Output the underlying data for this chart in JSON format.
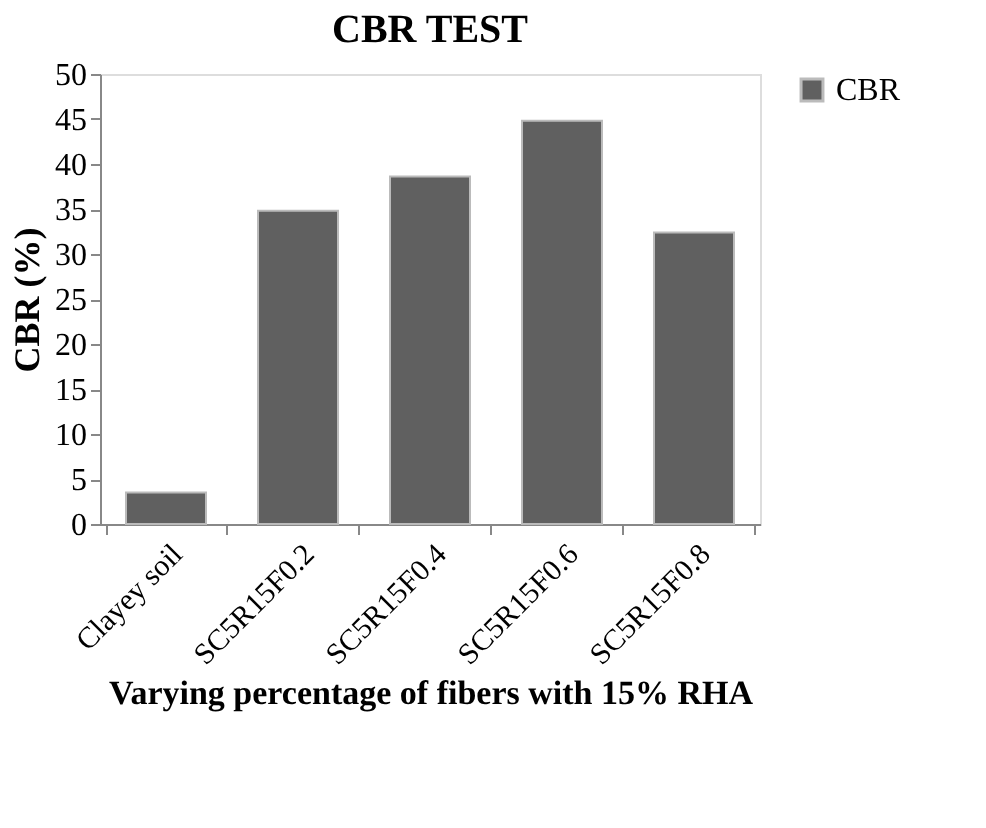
{
  "chart_data": {
    "type": "bar",
    "title": "CBR TEST",
    "xlabel": "Varying percentage of fibers with 15% RHA",
    "ylabel": "CBR (%)",
    "categories": [
      "Clayey soil",
      "SC5R15F0.2",
      "SC5R15F0.4",
      "SC5R15F0.6",
      "SC5R15F0.8"
    ],
    "series": [
      {
        "name": "CBR",
        "color": "#606060",
        "values": [
          3.5,
          34.8,
          38.6,
          44.8,
          32.4
        ]
      }
    ],
    "ylim": [
      0,
      50
    ],
    "yticks": [
      0,
      5,
      10,
      15,
      20,
      25,
      30,
      35,
      40,
      45,
      50
    ],
    "grid": false,
    "legend": "right"
  }
}
